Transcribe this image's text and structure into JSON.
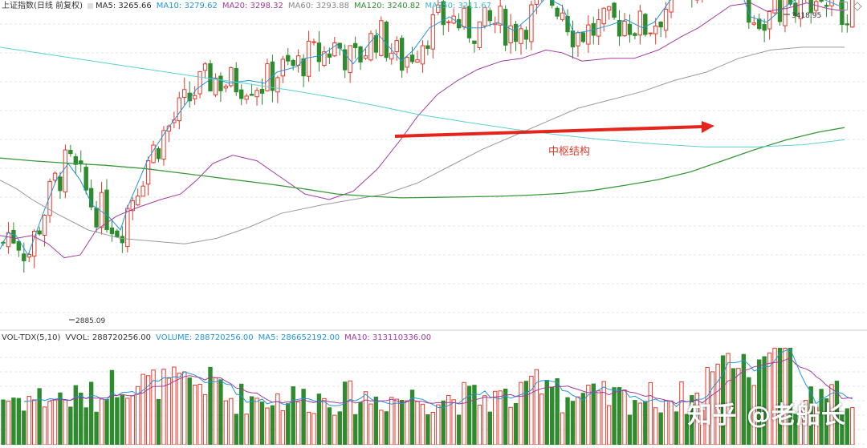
{
  "legend": {
    "title": "上证指数(日线 前复权)",
    "ma5": "MA5: 3265.66",
    "ma10": "MA10: 3279.62",
    "ma20": "MA20: 3298.32",
    "ma60": "MA60: 3293.88",
    "ma120": "MA120: 3240.82",
    "ma250": "MA250: 3211.67"
  },
  "volume_legend": {
    "title": "VOL-TDX(5,10)",
    "vvol": "VVOL: 288720256.00",
    "volume": "VOLUME: 288720256.00",
    "ma5": "MA5: 286652192.00",
    "ma10": "MA10: 313110336.00"
  },
  "annotation": "中枢结构",
  "watermark": "知乎 @老船长",
  "colors": {
    "up": "#e23a2e",
    "down": "#2e8b2e",
    "ma5": "#2b2b2b",
    "ma10": "#2196d8",
    "ma20": "#a23aa0",
    "ma60": "#999999",
    "ma120": "#3a9a3a",
    "ma250": "#5bd0d0",
    "arrow": "#e4251c"
  },
  "chart_data": {
    "type": "candlestick",
    "y_min_label": "2885.09",
    "y_max_label": "3418.95",
    "ylim": [
      2870,
      3440
    ],
    "grid": true,
    "n_bars": 165,
    "volume_ylim": [
      0,
      1000000000
    ],
    "ma_lines": {
      "ma10": [
        [
          0,
          3010
        ],
        [
          10,
          3040
        ],
        [
          20,
          3035
        ],
        [
          35,
          3000
        ],
        [
          55,
          3080
        ],
        [
          70,
          3135
        ],
        [
          85,
          3165
        ],
        [
          100,
          3135
        ],
        [
          115,
          3090
        ],
        [
          135,
          3070
        ],
        [
          150,
          3045
        ],
        [
          160,
          3090
        ],
        [
          185,
          3175
        ],
        [
          205,
          3220
        ],
        [
          225,
          3260
        ],
        [
          245,
          3300
        ],
        [
          265,
          3320
        ],
        [
          285,
          3310
        ],
        [
          310,
          3315
        ],
        [
          330,
          3310
        ],
        [
          345,
          3330
        ],
        [
          370,
          3340
        ],
        [
          380,
          3355
        ],
        [
          400,
          3360
        ],
        [
          420,
          3380
        ],
        [
          440,
          3345
        ],
        [
          470,
          3400
        ],
        [
          500,
          3350
        ],
        [
          515,
          3370
        ],
        [
          535,
          3410
        ],
        [
          560,
          3430
        ],
        [
          580,
          3410
        ],
        [
          600,
          3410
        ],
        [
          620,
          3420
        ],
        [
          640,
          3405
        ],
        [
          660,
          3430
        ],
        [
          680,
          3465
        ],
        [
          700,
          3450
        ],
        [
          715,
          3400
        ],
        [
          735,
          3405
        ],
        [
          760,
          3415
        ],
        [
          780,
          3425
        ],
        [
          800,
          3410
        ],
        [
          815,
          3420
        ],
        [
          835,
          3460
        ],
        [
          860,
          3475
        ],
        [
          880,
          3490
        ],
        [
          900,
          3530
        ],
        [
          915,
          3505
        ],
        [
          935,
          3430
        ],
        [
          955,
          3420
        ],
        [
          975,
          3445
        ],
        [
          1000,
          3470
        ],
        [
          1020,
          3465
        ],
        [
          1045,
          3450
        ]
      ],
      "ma20": [
        [
          0,
          3035
        ],
        [
          20,
          3030
        ],
        [
          40,
          3035
        ],
        [
          60,
          3020
        ],
        [
          80,
          2995
        ],
        [
          100,
          3000
        ],
        [
          120,
          3045
        ],
        [
          145,
          3070
        ],
        [
          170,
          3085
        ],
        [
          200,
          3100
        ],
        [
          225,
          3110
        ],
        [
          245,
          3135
        ],
        [
          265,
          3165
        ],
        [
          290,
          3180
        ],
        [
          320,
          3170
        ],
        [
          350,
          3140
        ],
        [
          380,
          3110
        ],
        [
          410,
          3100
        ],
        [
          440,
          3115
        ],
        [
          470,
          3155
        ],
        [
          500,
          3210
        ],
        [
          520,
          3250
        ],
        [
          545,
          3290
        ],
        [
          570,
          3315
        ],
        [
          595,
          3335
        ],
        [
          625,
          3350
        ],
        [
          650,
          3355
        ],
        [
          680,
          3370
        ],
        [
          700,
          3365
        ],
        [
          725,
          3350
        ],
        [
          760,
          3355
        ],
        [
          790,
          3355
        ],
        [
          820,
          3370
        ],
        [
          850,
          3395
        ],
        [
          870,
          3410
        ],
        [
          890,
          3430
        ],
        [
          910,
          3450
        ],
        [
          935,
          3455
        ],
        [
          955,
          3440
        ],
        [
          980,
          3445
        ],
        [
          1005,
          3455
        ],
        [
          1030,
          3445
        ],
        [
          1052,
          3440
        ]
      ],
      "ma60": [
        [
          0,
          3135
        ],
        [
          20,
          3120
        ],
        [
          40,
          3100
        ],
        [
          70,
          3075
        ],
        [
          110,
          3045
        ],
        [
          150,
          3030
        ],
        [
          190,
          3025
        ],
        [
          230,
          3020
        ],
        [
          270,
          3030
        ],
        [
          310,
          3050
        ],
        [
          350,
          3075
        ],
        [
          400,
          3090
        ],
        [
          440,
          3100
        ],
        [
          480,
          3110
        ],
        [
          520,
          3130
        ],
        [
          560,
          3160
        ],
        [
          600,
          3190
        ],
        [
          640,
          3215
        ],
        [
          680,
          3240
        ],
        [
          720,
          3265
        ],
        [
          760,
          3280
        ],
        [
          800,
          3295
        ],
        [
          840,
          3315
        ],
        [
          880,
          3330
        ],
        [
          920,
          3355
        ],
        [
          960,
          3370
        ],
        [
          1000,
          3375
        ],
        [
          1052,
          3375
        ]
      ],
      "ma120": [
        [
          0,
          3175
        ],
        [
          40,
          3170
        ],
        [
          80,
          3166
        ],
        [
          130,
          3162
        ],
        [
          180,
          3156
        ],
        [
          230,
          3147
        ],
        [
          280,
          3138
        ],
        [
          330,
          3129
        ],
        [
          380,
          3119
        ],
        [
          420,
          3110
        ],
        [
          460,
          3106
        ],
        [
          500,
          3103
        ],
        [
          540,
          3104
        ],
        [
          580,
          3105
        ],
        [
          620,
          3106
        ],
        [
          660,
          3108
        ],
        [
          700,
          3111
        ],
        [
          740,
          3117
        ],
        [
          780,
          3126
        ],
        [
          820,
          3136
        ],
        [
          860,
          3150
        ],
        [
          900,
          3170
        ],
        [
          940,
          3190
        ],
        [
          980,
          3208
        ],
        [
          1020,
          3222
        ],
        [
          1052,
          3230
        ]
      ],
      "ma250": [
        [
          0,
          3375
        ],
        [
          60,
          3362
        ],
        [
          120,
          3349
        ],
        [
          180,
          3336
        ],
        [
          240,
          3323
        ],
        [
          300,
          3311
        ],
        [
          360,
          3298
        ],
        [
          420,
          3283
        ],
        [
          470,
          3269
        ],
        [
          520,
          3254
        ],
        [
          580,
          3240
        ],
        [
          640,
          3227
        ],
        [
          700,
          3216
        ],
        [
          760,
          3207
        ],
        [
          820,
          3200
        ],
        [
          880,
          3195
        ],
        [
          940,
          3195
        ],
        [
          1000,
          3199
        ],
        [
          1052,
          3208
        ]
      ]
    }
  }
}
